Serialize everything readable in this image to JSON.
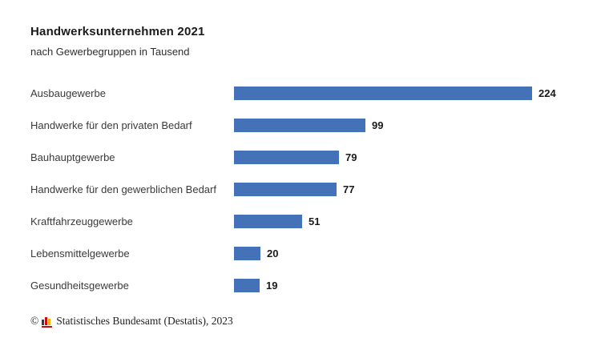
{
  "chart_data": {
    "type": "bar",
    "orientation": "horizontal",
    "title": "Handwerksunternehmen 2021",
    "subtitle": "nach Gewerbegruppen in Tausend",
    "categories": [
      "Ausbaugewerbe",
      "Handwerke für den privaten Bedarf",
      "Bauhauptgewerbe",
      "Handwerke für den gewerblichen Bedarf",
      "Kraftfahrzeuggewerbe",
      "Lebensmittelgewerbe",
      "Gesundheitsgewerbe"
    ],
    "values": [
      224,
      99,
      79,
      77,
      51,
      20,
      19
    ],
    "unit": "Tausend",
    "xlim": [
      0,
      224
    ],
    "bar_color": "#4472b8",
    "value_labels": true,
    "grid": false,
    "legend": false
  },
  "footer": {
    "copyright_symbol": "©",
    "source": "Statistisches Bundesamt (Destatis), 2023",
    "logo_colors": {
      "bar1": "#3a3a3a",
      "bar2": "#cc0a11",
      "bar3": "#f5b30a",
      "baseline": "#cc0a11"
    }
  }
}
